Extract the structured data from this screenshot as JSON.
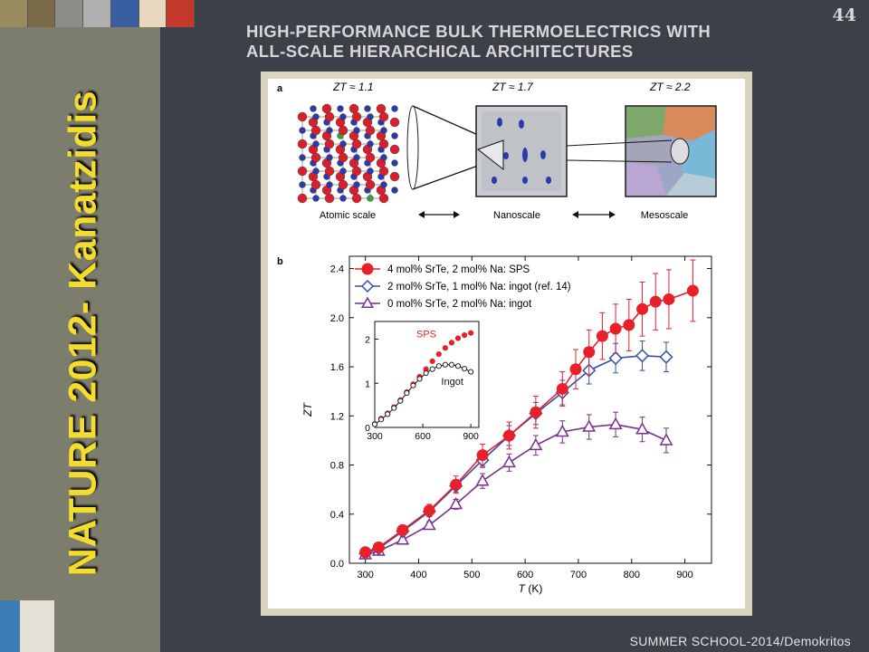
{
  "slide": {
    "page_number": "44",
    "title_line1": "HIGH-PERFORMANCE BULK THERMOELECTRICS WITH",
    "title_line2": "ALL-SCALE HIERARCHICAL ARCHITECTURES",
    "vertical_title": "NATURE 2012- Kanatzidis",
    "footer": "SUMMER SCHOOL-2014/Demokritos",
    "colors": {
      "background": "#3d4049",
      "sidebar": "#7d7d6e",
      "vertical_title": "#f2dc2e"
    }
  },
  "panel_a": {
    "label": "a",
    "zt_atomic": "ZT ≈ 1.1",
    "zt_nano": "ZT ≈ 1.7",
    "zt_meso": "ZT ≈ 2.2",
    "caption_atomic": "Atomic scale",
    "caption_nano": "Nanoscale",
    "caption_meso": "Mesoscale"
  },
  "panel_b": {
    "label": "b"
  },
  "chart_data": [
    {
      "type": "line",
      "xlabel": "T (K)",
      "ylabel": "ZT",
      "xlim": [
        270,
        950
      ],
      "ylim": [
        0,
        2.5
      ],
      "xticks": [
        "300",
        "400",
        "500",
        "600",
        "700",
        "800",
        "900"
      ],
      "yticks": [
        "0.0",
        "0.4",
        "0.8",
        "1.2",
        "1.6",
        "2.0",
        "2.4"
      ],
      "legend_position": "top-left",
      "series": [
        {
          "name": "4 mol% SrTe, 2 mol% Na: SPS",
          "color": "#e8202a",
          "marker": "circle-filled",
          "x": [
            300,
            325,
            370,
            420,
            470,
            520,
            570,
            620,
            670,
            695,
            720,
            745,
            770,
            795,
            820,
            845,
            870,
            915
          ],
          "y": [
            0.09,
            0.13,
            0.27,
            0.43,
            0.64,
            0.88,
            1.04,
            1.23,
            1.42,
            1.58,
            1.72,
            1.85,
            1.91,
            1.94,
            2.07,
            2.13,
            2.15,
            2.22
          ],
          "error": [
            0.03,
            0.03,
            0.04,
            0.05,
            0.07,
            0.09,
            0.11,
            0.13,
            0.14,
            0.16,
            0.18,
            0.19,
            0.2,
            0.21,
            0.22,
            0.23,
            0.24,
            0.25
          ]
        },
        {
          "name": "2 mol% SrTe, 1 mol% Na: ingot (ref. 14)",
          "color": "#3450a8",
          "marker": "diamond-open",
          "x": [
            300,
            325,
            370,
            420,
            470,
            520,
            570,
            620,
            670,
            720,
            770,
            820,
            865
          ],
          "y": [
            0.08,
            0.12,
            0.26,
            0.42,
            0.63,
            0.84,
            1.04,
            1.22,
            1.39,
            1.57,
            1.67,
            1.69,
            1.68
          ],
          "error": [
            0.02,
            0.02,
            0.03,
            0.04,
            0.05,
            0.06,
            0.08,
            0.09,
            0.1,
            0.11,
            0.12,
            0.12,
            0.12
          ]
        },
        {
          "name": "0 mol% SrTe, 2 mol% Na: ingot",
          "color": "#7a2f8f",
          "marker": "triangle-open",
          "x": [
            300,
            325,
            370,
            420,
            470,
            520,
            570,
            620,
            670,
            720,
            770,
            820,
            865
          ],
          "y": [
            0.07,
            0.1,
            0.19,
            0.31,
            0.48,
            0.67,
            0.82,
            0.96,
            1.07,
            1.11,
            1.13,
            1.09,
            1.0
          ],
          "error": [
            0.02,
            0.02,
            0.03,
            0.03,
            0.04,
            0.06,
            0.07,
            0.08,
            0.09,
            0.1,
            0.1,
            0.1,
            0.1
          ]
        }
      ]
    },
    {
      "type": "line",
      "position": "inset",
      "xlim": [
        300,
        950
      ],
      "ylim": [
        0,
        2.4
      ],
      "xticks": [
        "300",
        "600",
        "900"
      ],
      "yticks": [
        "0",
        "1",
        "2"
      ],
      "annotations": [
        "SPS",
        "Ingot"
      ],
      "series": [
        {
          "label": "SPS",
          "color": "#e8202a",
          "marker": "circle-filled",
          "x": [
            300,
            340,
            380,
            420,
            460,
            500,
            540,
            580,
            620,
            660,
            700,
            740,
            780,
            820,
            860,
            900
          ],
          "y": [
            0.08,
            0.2,
            0.32,
            0.46,
            0.62,
            0.8,
            0.98,
            1.15,
            1.32,
            1.5,
            1.66,
            1.8,
            1.92,
            2.02,
            2.09,
            2.14
          ]
        },
        {
          "label": "Ingot",
          "color": "#222222",
          "marker": "circle-open",
          "x": [
            300,
            340,
            380,
            420,
            460,
            500,
            540,
            580,
            620,
            660,
            700,
            740,
            780,
            820,
            860,
            900
          ],
          "y": [
            0.07,
            0.18,
            0.3,
            0.44,
            0.6,
            0.78,
            0.95,
            1.1,
            1.23,
            1.32,
            1.39,
            1.42,
            1.42,
            1.39,
            1.33,
            1.26
          ]
        }
      ]
    }
  ]
}
